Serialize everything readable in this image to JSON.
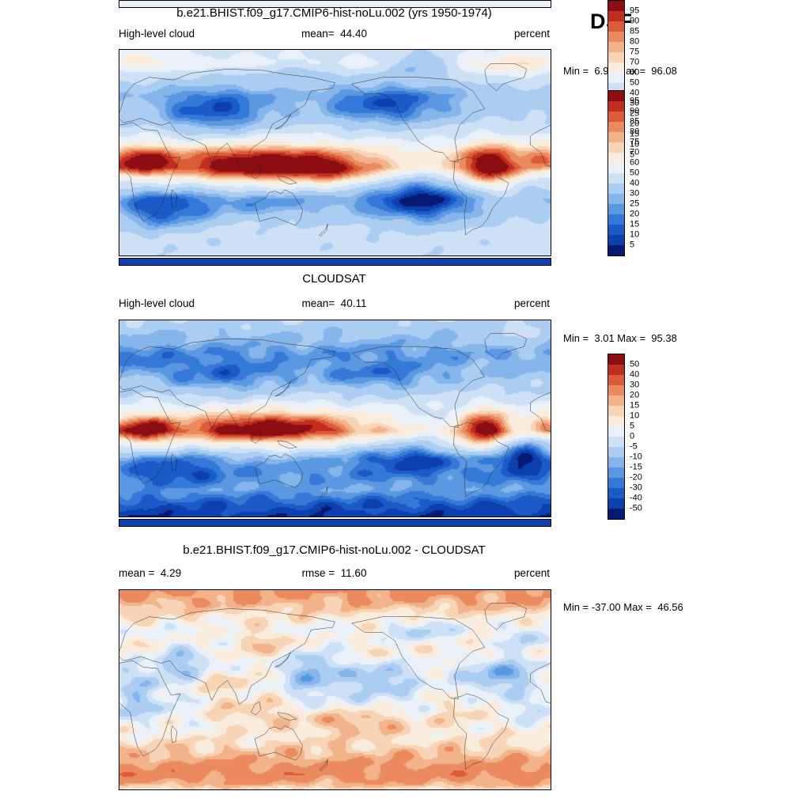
{
  "header": {
    "season": "DJF"
  },
  "chart_data": [
    {
      "type": "heatmap",
      "panel": "model",
      "title": "b.e21.BHIST.f09_g17.CMIP6-hist-noLu.002 (yrs 1950-1974)",
      "variable": "High-level cloud",
      "units": "percent",
      "mean_label": "mean=  44.40",
      "minmax_label": "Min =  6.93 Max =  96.08",
      "mean": 44.4,
      "min": 6.93,
      "max": 96.08,
      "season": "DJF",
      "colorbar": {
        "levels": [
          5,
          10,
          15,
          20,
          25,
          30,
          40,
          50,
          60,
          70,
          75,
          80,
          85,
          90,
          95
        ],
        "labels_top_to_bottom": [
          "95",
          "90",
          "85",
          "80",
          "75",
          "70",
          "60",
          "50",
          "40",
          "30",
          "25",
          "20",
          "15",
          "10",
          "5"
        ],
        "colors_low_to_high": [
          "#071a73",
          "#0d3fae",
          "#1a5bc8",
          "#3579d8",
          "#5b98e2",
          "#85b5ea",
          "#abcdf1",
          "#cde0f6",
          "#e9f0f8",
          "#f9ecdd",
          "#f7d4b5",
          "#f2b38b",
          "#ea8a5e",
          "#dd5c38",
          "#c22d22",
          "#8c0d12"
        ]
      },
      "field": {
        "range": [
          0,
          100
        ],
        "noise": 3,
        "strip_value": 50,
        "zonal": [
          [
            0,
            48
          ],
          [
            0.06,
            55
          ],
          [
            0.12,
            42
          ],
          [
            0.22,
            32
          ],
          [
            0.32,
            38
          ],
          [
            0.42,
            48
          ],
          [
            0.5,
            60
          ],
          [
            0.57,
            62
          ],
          [
            0.64,
            40
          ],
          [
            0.72,
            30
          ],
          [
            0.8,
            38
          ],
          [
            0.9,
            45
          ],
          [
            1,
            42
          ]
        ],
        "blobs": [
          {
            "u": 0.33,
            "v": 0.56,
            "su": 0.17,
            "sv": 0.075,
            "a": 45
          },
          {
            "u": 0.5,
            "v": 0.6,
            "su": 0.08,
            "sv": 0.05,
            "a": 15
          },
          {
            "u": 0.855,
            "v": 0.57,
            "su": 0.055,
            "sv": 0.085,
            "a": 45
          },
          {
            "u": 0.045,
            "v": 0.54,
            "su": 0.05,
            "sv": 0.06,
            "a": 32
          },
          {
            "u": 0.985,
            "v": 0.52,
            "su": 0.04,
            "sv": 0.05,
            "a": 22
          },
          {
            "u": 0.1,
            "v": 0.78,
            "su": 0.07,
            "sv": 0.07,
            "a": -25
          },
          {
            "u": 0.7,
            "v": 0.73,
            "su": 0.09,
            "sv": 0.08,
            "a": -30
          },
          {
            "u": 0.33,
            "v": 0.74,
            "su": 0.12,
            "sv": 0.05,
            "a": -12
          },
          {
            "u": 0.22,
            "v": 0.3,
            "su": 0.09,
            "sv": 0.08,
            "a": -26
          },
          {
            "u": 0.62,
            "v": 0.27,
            "su": 0.1,
            "sv": 0.07,
            "a": -24
          },
          {
            "u": 0.69,
            "v": 0.06,
            "su": 0.05,
            "sv": 0.045,
            "a": -22
          },
          {
            "u": 0.92,
            "v": 0.08,
            "su": 0.07,
            "sv": 0.06,
            "a": 14
          },
          {
            "u": 0.06,
            "v": 0.05,
            "su": 0.06,
            "sv": 0.05,
            "a": 10
          },
          {
            "u": 0.42,
            "v": 0.1,
            "su": 0.05,
            "sv": 0.04,
            "a": -10
          }
        ]
      }
    },
    {
      "type": "heatmap",
      "panel": "observations",
      "title": "CLOUDSAT",
      "variable": "High-level cloud",
      "units": "percent",
      "mean_label": "mean=  40.11",
      "minmax_label": "Min =  3.01 Max =  95.38",
      "mean": 40.11,
      "min": 3.01,
      "max": 95.38,
      "season": "DJF",
      "colorbar": {
        "levels": [
          5,
          10,
          15,
          20,
          25,
          30,
          40,
          50,
          60,
          70,
          75,
          80,
          85,
          90,
          95
        ],
        "labels_top_to_bottom": [
          "95",
          "90",
          "85",
          "80",
          "75",
          "70",
          "60",
          "50",
          "40",
          "30",
          "25",
          "20",
          "15",
          "10",
          "5"
        ],
        "colors_low_to_high": [
          "#071a73",
          "#0d3fae",
          "#1a5bc8",
          "#3579d8",
          "#5b98e2",
          "#85b5ea",
          "#abcdf1",
          "#cde0f6",
          "#e9f0f8",
          "#f9ecdd",
          "#f7d4b5",
          "#f2b38b",
          "#ea8a5e",
          "#dd5c38",
          "#c22d22",
          "#8c0d12"
        ]
      },
      "field": {
        "range": [
          0,
          100
        ],
        "noise": 4,
        "strip_value": 5,
        "zonal": [
          [
            0,
            38
          ],
          [
            0.08,
            30
          ],
          [
            0.16,
            24
          ],
          [
            0.26,
            30
          ],
          [
            0.36,
            40
          ],
          [
            0.48,
            55
          ],
          [
            0.56,
            65
          ],
          [
            0.62,
            45
          ],
          [
            0.7,
            25
          ],
          [
            0.78,
            22
          ],
          [
            0.86,
            25
          ],
          [
            0.93,
            12
          ],
          [
            1,
            6
          ]
        ],
        "blobs": [
          {
            "u": 0.34,
            "v": 0.55,
            "su": 0.15,
            "sv": 0.07,
            "a": 42
          },
          {
            "u": 0.84,
            "v": 0.56,
            "su": 0.05,
            "sv": 0.08,
            "a": 42
          },
          {
            "u": 0.05,
            "v": 0.56,
            "su": 0.05,
            "sv": 0.06,
            "a": 35
          },
          {
            "u": 0.99,
            "v": 0.53,
            "su": 0.03,
            "sv": 0.05,
            "a": 20
          },
          {
            "u": 0.93,
            "v": 0.68,
            "su": 0.05,
            "sv": 0.08,
            "a": -25
          },
          {
            "u": 0.68,
            "v": 0.7,
            "su": 0.09,
            "sv": 0.06,
            "a": -18
          },
          {
            "u": 0.13,
            "v": 0.76,
            "su": 0.08,
            "sv": 0.06,
            "a": -14
          },
          {
            "u": 0.24,
            "v": 0.28,
            "su": 0.1,
            "sv": 0.07,
            "a": -16
          },
          {
            "u": 0.6,
            "v": 0.28,
            "su": 0.1,
            "sv": 0.06,
            "a": -14
          },
          {
            "u": 0.75,
            "v": 0.52,
            "su": 0.04,
            "sv": 0.05,
            "a": -15
          },
          {
            "u": 0.92,
            "v": 0.08,
            "su": 0.06,
            "sv": 0.05,
            "a": 10
          },
          {
            "u": 0.05,
            "v": 0.2,
            "su": 0.05,
            "sv": 0.05,
            "a": -8
          }
        ]
      }
    },
    {
      "type": "heatmap",
      "panel": "difference",
      "title": "b.e21.BHIST.f09_g17.CMIP6-hist-noLu.002 - CLOUDSAT",
      "units": "percent",
      "mean_label": "mean =  4.29",
      "rmse_label": "rmse =  11.60",
      "minmax_label": "Min = -37.00 Max =  46.56",
      "mean": 4.29,
      "rmse": 11.6,
      "min": -37.0,
      "max": 46.56,
      "season": "DJF",
      "colorbar": {
        "levels": [
          -50,
          -40,
          -30,
          -20,
          -15,
          -10,
          -5,
          0,
          5,
          10,
          15,
          20,
          30,
          40,
          50
        ],
        "labels_top_to_bottom": [
          "50",
          "40",
          "30",
          "20",
          "15",
          "10",
          "5",
          "0",
          "-5",
          "-10",
          "-15",
          "-20",
          "-30",
          "-40",
          "-50"
        ],
        "colors_low_to_high": [
          "#071a73",
          "#0d3fae",
          "#1a5bc8",
          "#3579d8",
          "#5b98e2",
          "#85b5ea",
          "#abcdf1",
          "#cde0f6",
          "#e9f0f8",
          "#f9ecdd",
          "#f7d4b5",
          "#f2b38b",
          "#ea8a5e",
          "#dd5c38",
          "#c22d22",
          "#8c0d12"
        ]
      },
      "field": {
        "range": [
          -50,
          50
        ],
        "noise": 5,
        "strip_value": -45,
        "zonal": [
          [
            0,
            22
          ],
          [
            0.06,
            18
          ],
          [
            0.12,
            10
          ],
          [
            0.2,
            4
          ],
          [
            0.3,
            8
          ],
          [
            0.4,
            2
          ],
          [
            0.5,
            3
          ],
          [
            0.6,
            -2
          ],
          [
            0.68,
            4
          ],
          [
            0.76,
            10
          ],
          [
            0.84,
            18
          ],
          [
            0.92,
            26
          ],
          [
            0.97,
            18
          ],
          [
            1,
            8
          ]
        ],
        "blobs": [
          {
            "u": 0.15,
            "v": 0.35,
            "su": 0.05,
            "sv": 0.06,
            "a": -14
          },
          {
            "u": 0.45,
            "v": 0.4,
            "su": 0.04,
            "sv": 0.1,
            "a": -16
          },
          {
            "u": 0.6,
            "v": 0.45,
            "su": 0.05,
            "sv": 0.06,
            "a": -14
          },
          {
            "u": 0.88,
            "v": 0.42,
            "su": 0.05,
            "sv": 0.07,
            "a": -16
          },
          {
            "u": 0.7,
            "v": 0.2,
            "su": 0.05,
            "sv": 0.05,
            "a": -10
          },
          {
            "u": 0.3,
            "v": 0.6,
            "su": 0.1,
            "sv": 0.05,
            "a": 14
          },
          {
            "u": 0.55,
            "v": 0.65,
            "su": 0.1,
            "sv": 0.05,
            "a": 16
          },
          {
            "u": 0.05,
            "v": 0.5,
            "su": 0.04,
            "sv": 0.08,
            "a": -10
          },
          {
            "u": 0.8,
            "v": 0.6,
            "su": 0.06,
            "sv": 0.05,
            "a": 12
          },
          {
            "u": 0.25,
            "v": 0.45,
            "su": 0.05,
            "sv": 0.05,
            "a": 10
          },
          {
            "u": 0.95,
            "v": 0.25,
            "su": 0.04,
            "sv": 0.05,
            "a": -10
          },
          {
            "u": 0.35,
            "v": 0.25,
            "su": 0.06,
            "sv": 0.04,
            "a": 8
          }
        ]
      }
    }
  ]
}
